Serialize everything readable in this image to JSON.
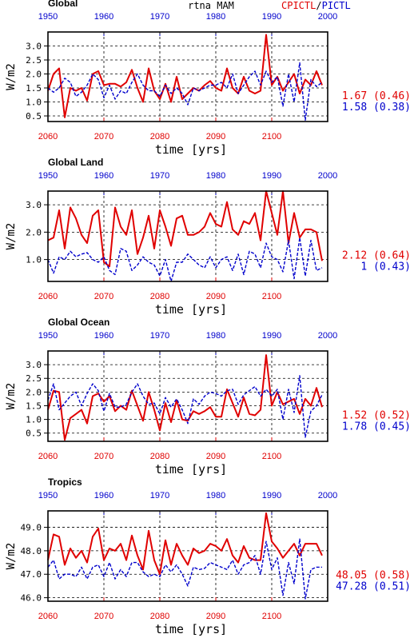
{
  "header": {
    "center_title": "rtna MAM",
    "legend_red": "CPICTL",
    "legend_sep": "/",
    "legend_blue": "PICTL"
  },
  "colors": {
    "red": "#e00000",
    "blue": "#0000cc",
    "black": "#000000"
  },
  "common": {
    "top_axis_ticks": [
      "1950",
      "1960",
      "1970",
      "1980",
      "1990",
      "2000"
    ],
    "bottom_axis_ticks": [
      "2060",
      "2070",
      "2080",
      "2090",
      "2100"
    ],
    "xlabel": "time [yrs]",
    "ylabel": "W/m2"
  },
  "chart_data": [
    {
      "type": "line",
      "title": "Global",
      "x": [
        2060,
        2061,
        2062,
        2063,
        2064,
        2065,
        2066,
        2067,
        2068,
        2069,
        2070,
        2071,
        2072,
        2073,
        2074,
        2075,
        2076,
        2077,
        2078,
        2079,
        2080,
        2081,
        2082,
        2083,
        2084,
        2085,
        2086,
        2087,
        2088,
        2089,
        2090,
        2091,
        2092,
        2093,
        2094,
        2095,
        2096,
        2097,
        2098,
        2099,
        2100,
        2101,
        2102,
        2103,
        2104,
        2105,
        2106,
        2107,
        2108,
        2109
      ],
      "ylim": [
        0.3,
        3.5
      ],
      "yticks": [
        "0.5",
        "1.0",
        "1.5",
        "2.0",
        "2.5",
        "3.0"
      ],
      "series": [
        {
          "name": "CPICTL",
          "values": [
            1.4,
            2.0,
            2.2,
            0.45,
            1.5,
            1.4,
            1.5,
            1.05,
            2.0,
            2.1,
            1.6,
            1.65,
            1.65,
            1.55,
            1.7,
            2.15,
            1.5,
            1.0,
            2.2,
            1.4,
            1.1,
            1.65,
            1.0,
            1.9,
            1.1,
            1.3,
            1.5,
            1.4,
            1.6,
            1.75,
            1.5,
            1.4,
            2.2,
            1.5,
            1.3,
            1.9,
            1.4,
            1.3,
            1.4,
            3.4,
            1.6,
            1.9,
            1.4,
            1.7,
            2.0,
            1.3,
            1.8,
            1.6,
            2.1,
            1.6
          ]
        },
        {
          "name": "PICTL",
          "values": [
            1.5,
            1.35,
            1.5,
            1.85,
            1.7,
            1.2,
            1.35,
            1.6,
            2.0,
            1.8,
            1.15,
            1.6,
            1.1,
            1.4,
            1.3,
            1.7,
            2.0,
            1.6,
            1.4,
            1.4,
            1.2,
            1.6,
            1.3,
            1.5,
            1.3,
            0.9,
            1.5,
            1.4,
            1.5,
            1.6,
            1.6,
            1.7,
            1.5,
            2.0,
            1.3,
            1.6,
            1.9,
            2.1,
            1.6,
            2.1,
            1.7,
            1.9,
            0.85,
            2.0,
            1.0,
            2.4,
            0.35,
            1.8,
            1.55,
            1.7
          ]
        }
      ],
      "stats": [
        {
          "text": "1.67 (0.46)",
          "color": "red"
        },
        {
          "text": "1.58 (0.38)",
          "color": "blue"
        }
      ]
    },
    {
      "type": "line",
      "title": "Global Land",
      "x": [
        2060,
        2061,
        2062,
        2063,
        2064,
        2065,
        2066,
        2067,
        2068,
        2069,
        2070,
        2071,
        2072,
        2073,
        2074,
        2075,
        2076,
        2077,
        2078,
        2079,
        2080,
        2081,
        2082,
        2083,
        2084,
        2085,
        2086,
        2087,
        2088,
        2089,
        2090,
        2091,
        2092,
        2093,
        2094,
        2095,
        2096,
        2097,
        2098,
        2099,
        2100,
        2101,
        2102,
        2103,
        2104,
        2105,
        2106,
        2107,
        2108,
        2109
      ],
      "ylim": [
        0.2,
        3.5
      ],
      "yticks": [
        "1.0",
        "2.0",
        "3.0"
      ],
      "series": [
        {
          "name": "CPICTL",
          "values": [
            1.7,
            1.8,
            2.8,
            1.4,
            2.9,
            2.5,
            1.9,
            1.6,
            2.6,
            2.8,
            0.9,
            0.75,
            2.9,
            2.2,
            1.9,
            2.8,
            1.2,
            1.8,
            2.6,
            1.4,
            2.8,
            2.2,
            1.5,
            2.5,
            2.6,
            1.9,
            1.9,
            2.0,
            2.2,
            2.7,
            2.3,
            2.2,
            3.1,
            2.1,
            1.9,
            2.4,
            2.3,
            2.7,
            1.7,
            3.5,
            2.7,
            1.9,
            3.5,
            1.6,
            2.7,
            1.8,
            2.1,
            2.1,
            2.0,
            0.95
          ]
        },
        {
          "name": "PICTL",
          "values": [
            1.0,
            0.5,
            1.1,
            1.0,
            1.3,
            1.1,
            1.2,
            1.25,
            1.0,
            0.9,
            1.1,
            0.6,
            0.45,
            1.4,
            1.3,
            0.6,
            0.8,
            1.1,
            0.9,
            0.8,
            0.4,
            1.0,
            0.2,
            0.9,
            0.9,
            1.2,
            1.0,
            0.8,
            0.7,
            1.1,
            0.7,
            1.0,
            1.1,
            0.6,
            1.2,
            0.45,
            1.3,
            1.2,
            0.7,
            1.6,
            1.1,
            1.0,
            0.55,
            1.7,
            0.3,
            1.8,
            0.4,
            1.7,
            0.6,
            0.7
          ]
        }
      ],
      "stats": [
        {
          "text": "2.12 (0.64)",
          "color": "red"
        },
        {
          "text": "1 (0.43)",
          "color": "blue"
        }
      ]
    },
    {
      "type": "line",
      "title": "Global Ocean",
      "x": [
        2060,
        2061,
        2062,
        2063,
        2064,
        2065,
        2066,
        2067,
        2068,
        2069,
        2070,
        2071,
        2072,
        2073,
        2074,
        2075,
        2076,
        2077,
        2078,
        2079,
        2080,
        2081,
        2082,
        2083,
        2084,
        2085,
        2086,
        2087,
        2088,
        2089,
        2090,
        2091,
        2092,
        2093,
        2094,
        2095,
        2096,
        2097,
        2098,
        2099,
        2100,
        2101,
        2102,
        2103,
        2104,
        2105,
        2106,
        2107,
        2108,
        2109
      ],
      "ylim": [
        0.2,
        3.5
      ],
      "yticks": [
        "0.5",
        "1.0",
        "1.5",
        "2.0",
        "2.5",
        "3.0"
      ],
      "series": [
        {
          "name": "CPICTL",
          "values": [
            1.35,
            2.05,
            2.0,
            0.25,
            1.05,
            1.2,
            1.35,
            0.85,
            1.85,
            1.95,
            1.65,
            1.85,
            1.3,
            1.5,
            1.35,
            2.05,
            1.5,
            0.95,
            2.0,
            1.35,
            0.6,
            1.6,
            0.9,
            1.7,
            1.0,
            0.95,
            1.3,
            1.2,
            1.3,
            1.45,
            1.1,
            1.1,
            2.1,
            1.6,
            1.1,
            1.8,
            1.2,
            1.15,
            1.35,
            3.35,
            1.5,
            2.0,
            1.55,
            1.65,
            1.75,
            1.2,
            1.75,
            1.5,
            2.15,
            1.45
          ]
        },
        {
          "name": "PICTL",
          "values": [
            1.7,
            2.3,
            1.35,
            1.6,
            1.85,
            2.0,
            1.5,
            1.95,
            2.3,
            2.05,
            1.3,
            1.95,
            1.45,
            1.45,
            1.55,
            2.0,
            2.3,
            1.85,
            1.55,
            1.6,
            1.2,
            1.8,
            1.45,
            1.75,
            1.35,
            0.85,
            1.75,
            1.55,
            1.85,
            2.0,
            1.95,
            1.85,
            2.05,
            2.1,
            1.55,
            1.9,
            2.05,
            2.2,
            1.85,
            2.1,
            1.85,
            2.1,
            1.0,
            2.1,
            1.25,
            2.6,
            0.35,
            1.3,
            1.5,
            1.9
          ]
        }
      ],
      "stats": [
        {
          "text": "1.52 (0.52)",
          "color": "red"
        },
        {
          "text": "1.78 (0.45)",
          "color": "blue"
        }
      ]
    },
    {
      "type": "line",
      "title": "Tropics",
      "x": [
        2060,
        2061,
        2062,
        2063,
        2064,
        2065,
        2066,
        2067,
        2068,
        2069,
        2070,
        2071,
        2072,
        2073,
        2074,
        2075,
        2076,
        2077,
        2078,
        2079,
        2080,
        2081,
        2082,
        2083,
        2084,
        2085,
        2086,
        2087,
        2088,
        2089,
        2090,
        2091,
        2092,
        2093,
        2094,
        2095,
        2096,
        2097,
        2098,
        2099,
        2100,
        2101,
        2102,
        2103,
        2104,
        2105,
        2106,
        2107,
        2108,
        2109
      ],
      "ylim": [
        45.85,
        49.7
      ],
      "yticks": [
        "46.0",
        "47.0",
        "48.0",
        "49.0"
      ],
      "series": [
        {
          "name": "CPICTL",
          "values": [
            47.6,
            48.7,
            48.6,
            47.4,
            48.1,
            47.7,
            48.0,
            47.5,
            48.6,
            48.95,
            47.6,
            48.1,
            48.0,
            48.3,
            47.6,
            48.65,
            47.8,
            47.2,
            48.85,
            47.6,
            47.0,
            48.45,
            47.4,
            48.3,
            47.8,
            47.4,
            48.1,
            47.9,
            48.0,
            48.3,
            48.2,
            48.0,
            48.5,
            47.8,
            47.5,
            48.2,
            47.7,
            47.6,
            47.6,
            49.6,
            48.4,
            48.1,
            47.7,
            48.0,
            48.3,
            47.8,
            48.3,
            48.3,
            48.3,
            47.8
          ]
        },
        {
          "name": "PICTL",
          "values": [
            47.3,
            47.6,
            46.8,
            47.0,
            47.0,
            46.9,
            47.3,
            46.8,
            47.3,
            47.4,
            46.9,
            47.5,
            46.8,
            47.2,
            46.9,
            47.5,
            47.5,
            47.1,
            46.9,
            47.0,
            46.9,
            47.4,
            47.1,
            47.4,
            47.0,
            46.5,
            47.3,
            47.2,
            47.25,
            47.5,
            47.4,
            47.3,
            47.2,
            47.6,
            47.0,
            47.4,
            47.5,
            47.8,
            47.0,
            48.4,
            47.2,
            47.7,
            46.1,
            47.5,
            46.6,
            48.5,
            45.95,
            47.2,
            47.3,
            47.3
          ]
        }
      ],
      "stats": [
        {
          "text": "48.05 (0.58)",
          "color": "red"
        },
        {
          "text": "47.28 (0.51)",
          "color": "blue"
        }
      ]
    }
  ]
}
